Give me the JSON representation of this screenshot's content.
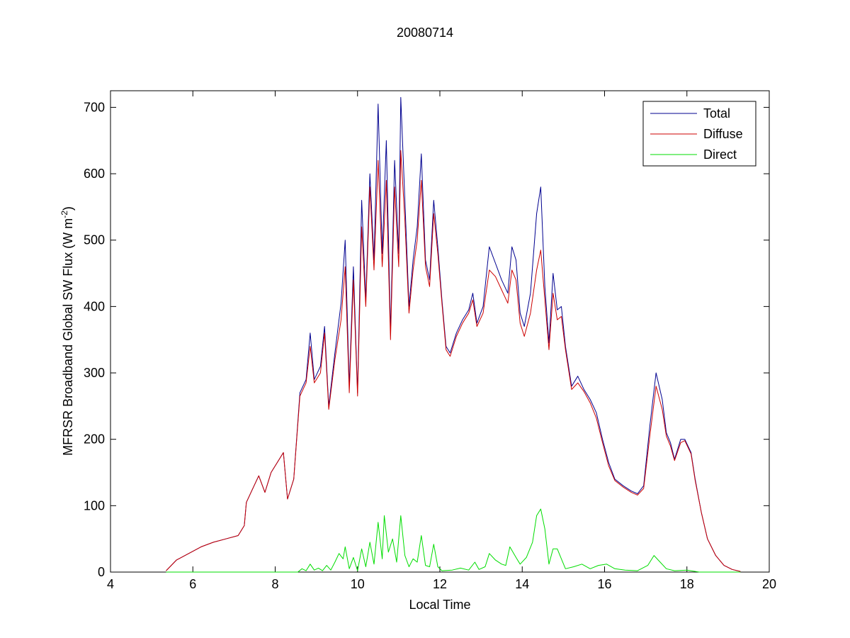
{
  "chart_data": {
    "type": "line",
    "title": "20080714",
    "xlabel": "Local Time",
    "ylabel_main": "MFRSR Broadband Global SW Flux (W m",
    "ylabel_exp": "-2",
    "ylabel_close": ")",
    "xlim": [
      4,
      20
    ],
    "ylim": [
      0,
      725
    ],
    "xticks": [
      4,
      6,
      8,
      10,
      12,
      14,
      16,
      18,
      20
    ],
    "yticks": [
      0,
      100,
      200,
      300,
      400,
      500,
      600,
      700
    ],
    "legend_position": "top-right",
    "series": [
      {
        "name": "Total",
        "color": "#00008f",
        "points": [
          [
            5.35,
            2
          ],
          [
            5.6,
            18
          ],
          [
            5.9,
            28
          ],
          [
            6.2,
            38
          ],
          [
            6.5,
            45
          ],
          [
            6.8,
            50
          ],
          [
            7.1,
            55
          ],
          [
            7.25,
            70
          ],
          [
            7.3,
            105
          ],
          [
            7.45,
            125
          ],
          [
            7.6,
            145
          ],
          [
            7.75,
            120
          ],
          [
            7.9,
            150
          ],
          [
            8.05,
            165
          ],
          [
            8.2,
            180
          ],
          [
            8.3,
            110
          ],
          [
            8.45,
            140
          ],
          [
            8.6,
            270
          ],
          [
            8.75,
            290
          ],
          [
            8.85,
            360
          ],
          [
            8.95,
            290
          ],
          [
            9.1,
            310
          ],
          [
            9.2,
            370
          ],
          [
            9.3,
            250
          ],
          [
            9.45,
            330
          ],
          [
            9.6,
            405
          ],
          [
            9.7,
            500
          ],
          [
            9.8,
            280
          ],
          [
            9.9,
            460
          ],
          [
            10.0,
            270
          ],
          [
            10.1,
            560
          ],
          [
            10.2,
            410
          ],
          [
            10.3,
            600
          ],
          [
            10.4,
            470
          ],
          [
            10.5,
            705
          ],
          [
            10.6,
            480
          ],
          [
            10.7,
            650
          ],
          [
            10.8,
            360
          ],
          [
            10.9,
            620
          ],
          [
            11.0,
            480
          ],
          [
            11.05,
            715
          ],
          [
            11.15,
            560
          ],
          [
            11.25,
            400
          ],
          [
            11.35,
            470
          ],
          [
            11.45,
            520
          ],
          [
            11.55,
            630
          ],
          [
            11.65,
            470
          ],
          [
            11.75,
            440
          ],
          [
            11.85,
            560
          ],
          [
            11.95,
            490
          ],
          [
            12.05,
            410
          ],
          [
            12.15,
            340
          ],
          [
            12.25,
            330
          ],
          [
            12.4,
            360
          ],
          [
            12.55,
            380
          ],
          [
            12.7,
            395
          ],
          [
            12.8,
            420
          ],
          [
            12.9,
            375
          ],
          [
            13.05,
            400
          ],
          [
            13.2,
            490
          ],
          [
            13.35,
            465
          ],
          [
            13.5,
            440
          ],
          [
            13.65,
            420
          ],
          [
            13.75,
            490
          ],
          [
            13.85,
            470
          ],
          [
            13.95,
            390
          ],
          [
            14.05,
            370
          ],
          [
            14.2,
            420
          ],
          [
            14.35,
            540
          ],
          [
            14.45,
            580
          ],
          [
            14.55,
            430
          ],
          [
            14.65,
            345
          ],
          [
            14.75,
            450
          ],
          [
            14.85,
            395
          ],
          [
            14.95,
            400
          ],
          [
            15.05,
            340
          ],
          [
            15.2,
            280
          ],
          [
            15.35,
            295
          ],
          [
            15.5,
            275
          ],
          [
            15.65,
            260
          ],
          [
            15.8,
            240
          ],
          [
            15.95,
            200
          ],
          [
            16.1,
            165
          ],
          [
            16.25,
            140
          ],
          [
            16.45,
            130
          ],
          [
            16.65,
            122
          ],
          [
            16.8,
            118
          ],
          [
            16.95,
            130
          ],
          [
            17.1,
            220
          ],
          [
            17.25,
            300
          ],
          [
            17.4,
            260
          ],
          [
            17.5,
            210
          ],
          [
            17.6,
            195
          ],
          [
            17.7,
            170
          ],
          [
            17.85,
            200
          ],
          [
            17.95,
            200
          ],
          [
            18.1,
            180
          ],
          [
            18.2,
            140
          ],
          [
            18.35,
            90
          ],
          [
            18.5,
            50
          ],
          [
            18.7,
            25
          ],
          [
            18.9,
            10
          ],
          [
            19.1,
            4
          ],
          [
            19.3,
            1
          ]
        ]
      },
      {
        "name": "Diffuse",
        "color": "#cc0000",
        "points": [
          [
            5.35,
            2
          ],
          [
            5.6,
            18
          ],
          [
            5.9,
            28
          ],
          [
            6.2,
            38
          ],
          [
            6.5,
            45
          ],
          [
            6.8,
            50
          ],
          [
            7.1,
            55
          ],
          [
            7.25,
            70
          ],
          [
            7.3,
            105
          ],
          [
            7.45,
            125
          ],
          [
            7.6,
            145
          ],
          [
            7.75,
            120
          ],
          [
            7.9,
            150
          ],
          [
            8.05,
            165
          ],
          [
            8.2,
            180
          ],
          [
            8.3,
            110
          ],
          [
            8.45,
            140
          ],
          [
            8.6,
            265
          ],
          [
            8.75,
            285
          ],
          [
            8.85,
            340
          ],
          [
            8.95,
            285
          ],
          [
            9.1,
            300
          ],
          [
            9.2,
            360
          ],
          [
            9.3,
            245
          ],
          [
            9.45,
            320
          ],
          [
            9.6,
            380
          ],
          [
            9.7,
            460
          ],
          [
            9.8,
            270
          ],
          [
            9.9,
            440
          ],
          [
            10.0,
            265
          ],
          [
            10.1,
            520
          ],
          [
            10.2,
            400
          ],
          [
            10.3,
            580
          ],
          [
            10.4,
            455
          ],
          [
            10.5,
            620
          ],
          [
            10.6,
            460
          ],
          [
            10.7,
            590
          ],
          [
            10.8,
            350
          ],
          [
            10.9,
            580
          ],
          [
            11.0,
            460
          ],
          [
            11.05,
            635
          ],
          [
            11.15,
            530
          ],
          [
            11.25,
            390
          ],
          [
            11.35,
            455
          ],
          [
            11.45,
            500
          ],
          [
            11.55,
            590
          ],
          [
            11.65,
            460
          ],
          [
            11.75,
            430
          ],
          [
            11.85,
            540
          ],
          [
            11.95,
            480
          ],
          [
            12.05,
            405
          ],
          [
            12.15,
            335
          ],
          [
            12.25,
            325
          ],
          [
            12.4,
            355
          ],
          [
            12.55,
            375
          ],
          [
            12.7,
            390
          ],
          [
            12.8,
            410
          ],
          [
            12.9,
            370
          ],
          [
            13.05,
            390
          ],
          [
            13.2,
            455
          ],
          [
            13.35,
            445
          ],
          [
            13.5,
            425
          ],
          [
            13.65,
            405
          ],
          [
            13.75,
            455
          ],
          [
            13.85,
            440
          ],
          [
            13.95,
            375
          ],
          [
            14.05,
            355
          ],
          [
            14.2,
            390
          ],
          [
            14.35,
            455
          ],
          [
            14.45,
            485
          ],
          [
            14.55,
            410
          ],
          [
            14.65,
            335
          ],
          [
            14.75,
            420
          ],
          [
            14.85,
            380
          ],
          [
            14.95,
            385
          ],
          [
            15.05,
            335
          ],
          [
            15.2,
            275
          ],
          [
            15.35,
            285
          ],
          [
            15.5,
            272
          ],
          [
            15.65,
            255
          ],
          [
            15.8,
            232
          ],
          [
            15.95,
            195
          ],
          [
            16.1,
            160
          ],
          [
            16.25,
            138
          ],
          [
            16.45,
            128
          ],
          [
            16.65,
            120
          ],
          [
            16.8,
            116
          ],
          [
            16.95,
            126
          ],
          [
            17.1,
            205
          ],
          [
            17.25,
            280
          ],
          [
            17.4,
            245
          ],
          [
            17.5,
            205
          ],
          [
            17.6,
            190
          ],
          [
            17.7,
            168
          ],
          [
            17.85,
            195
          ],
          [
            17.95,
            198
          ],
          [
            18.1,
            178
          ],
          [
            18.2,
            138
          ],
          [
            18.35,
            90
          ],
          [
            18.5,
            50
          ],
          [
            18.7,
            25
          ],
          [
            18.9,
            10
          ],
          [
            19.1,
            4
          ],
          [
            19.3,
            1
          ]
        ]
      },
      {
        "name": "Direct",
        "color": "#00dd00",
        "points": [
          [
            5.35,
            0
          ],
          [
            8.55,
            0
          ],
          [
            8.65,
            5
          ],
          [
            8.75,
            2
          ],
          [
            8.85,
            12
          ],
          [
            8.95,
            3
          ],
          [
            9.05,
            6
          ],
          [
            9.15,
            2
          ],
          [
            9.25,
            10
          ],
          [
            9.35,
            3
          ],
          [
            9.45,
            15
          ],
          [
            9.55,
            28
          ],
          [
            9.65,
            20
          ],
          [
            9.7,
            38
          ],
          [
            9.8,
            5
          ],
          [
            9.9,
            22
          ],
          [
            10.0,
            2
          ],
          [
            10.1,
            35
          ],
          [
            10.2,
            8
          ],
          [
            10.3,
            45
          ],
          [
            10.4,
            12
          ],
          [
            10.5,
            75
          ],
          [
            10.6,
            20
          ],
          [
            10.65,
            85
          ],
          [
            10.75,
            30
          ],
          [
            10.85,
            50
          ],
          [
            10.95,
            15
          ],
          [
            11.05,
            85
          ],
          [
            11.15,
            25
          ],
          [
            11.25,
            8
          ],
          [
            11.35,
            20
          ],
          [
            11.45,
            15
          ],
          [
            11.55,
            55
          ],
          [
            11.65,
            10
          ],
          [
            11.75,
            8
          ],
          [
            11.85,
            42
          ],
          [
            11.95,
            8
          ],
          [
            12.05,
            2
          ],
          [
            12.3,
            3
          ],
          [
            12.5,
            6
          ],
          [
            12.7,
            3
          ],
          [
            12.85,
            15
          ],
          [
            12.95,
            4
          ],
          [
            13.1,
            8
          ],
          [
            13.2,
            28
          ],
          [
            13.35,
            18
          ],
          [
            13.5,
            12
          ],
          [
            13.6,
            10
          ],
          [
            13.7,
            38
          ],
          [
            13.85,
            22
          ],
          [
            13.95,
            12
          ],
          [
            14.1,
            22
          ],
          [
            14.25,
            45
          ],
          [
            14.35,
            85
          ],
          [
            14.45,
            95
          ],
          [
            14.55,
            65
          ],
          [
            14.65,
            12
          ],
          [
            14.75,
            35
          ],
          [
            14.85,
            35
          ],
          [
            14.95,
            20
          ],
          [
            15.05,
            5
          ],
          [
            15.25,
            8
          ],
          [
            15.45,
            12
          ],
          [
            15.65,
            5
          ],
          [
            15.85,
            10
          ],
          [
            16.05,
            12
          ],
          [
            16.25,
            5
          ],
          [
            16.5,
            3
          ],
          [
            16.8,
            2
          ],
          [
            17.05,
            10
          ],
          [
            17.2,
            25
          ],
          [
            17.35,
            15
          ],
          [
            17.5,
            5
          ],
          [
            17.7,
            2
          ],
          [
            18.0,
            3
          ],
          [
            18.3,
            0
          ],
          [
            19.3,
            0
          ]
        ]
      }
    ]
  }
}
